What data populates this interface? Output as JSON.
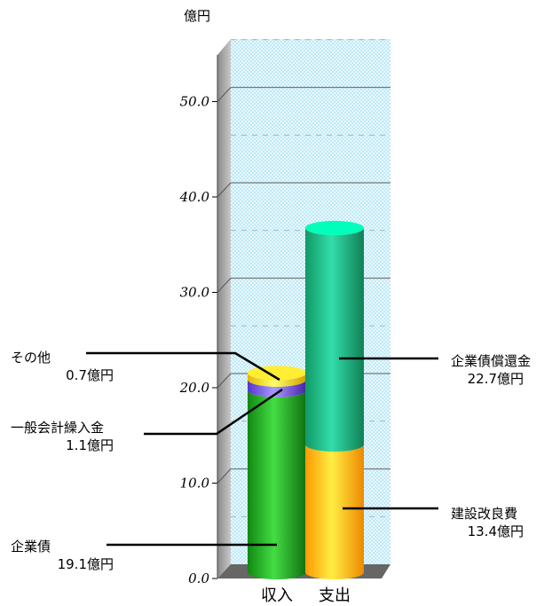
{
  "chart_data": {
    "type": "bar",
    "unit_label": "億円",
    "categories": [
      "収入",
      "支出"
    ],
    "yticks": [
      "0.0",
      "10.0",
      "20.0",
      "30.0",
      "40.0",
      "50.0"
    ],
    "ylim": [
      0,
      55
    ],
    "grid": true,
    "stacks": [
      {
        "category": "収入",
        "segments": [
          {
            "name": "企業債",
            "value": 19.1,
            "value_label": "19.1億円",
            "color": "#22aa22"
          },
          {
            "name": "一般会計繰入金",
            "value": 1.1,
            "value_label": "1.1億円",
            "color": "#7755ee"
          },
          {
            "name": "その他",
            "value": 0.7,
            "value_label": "0.7億円",
            "color": "#ffdd00"
          }
        ]
      },
      {
        "category": "支出",
        "segments": [
          {
            "name": "建設改良費",
            "value": 13.4,
            "value_label": "13.4億円",
            "color": "#ffaa00"
          },
          {
            "name": "企業債償還金",
            "value": 22.7,
            "value_label": "22.7億円",
            "color": "#11bb88"
          }
        ]
      }
    ]
  }
}
